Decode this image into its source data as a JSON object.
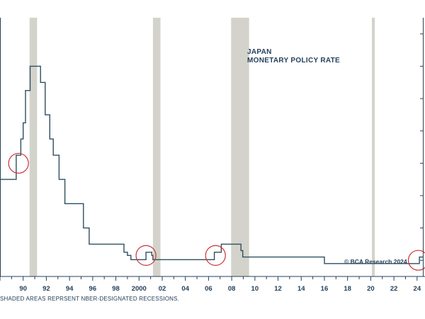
{
  "chart_data": {
    "type": "line",
    "title_lines": [
      "JAPAN",
      "MONETARY POLICY RATE"
    ],
    "credit": "© BCA Research 2024",
    "footnote": "SHADED AREAS REPRSENT NBER-DESIGNATED RECESSIONS.",
    "x_tick_labels": [
      "90",
      "92",
      "94",
      "96",
      "98",
      "2000",
      "02",
      "04",
      "06",
      "08",
      "10",
      "12",
      "14",
      "16",
      "18",
      "20",
      "22",
      "24"
    ],
    "x_tick_values": [
      1990,
      1992,
      1994,
      1996,
      1998,
      2000,
      2002,
      2004,
      2006,
      2008,
      2010,
      2012,
      2014,
      2016,
      2018,
      2020,
      2022,
      2024
    ],
    "xlim": [
      1988.0,
      2024.5
    ],
    "ylim": [
      -0.5,
      7.5
    ],
    "y_grid": false,
    "series": [
      {
        "name": "",
        "color": "#2f4f5f",
        "step": true,
        "points": [
          [
            1988.0,
            2.5
          ],
          [
            1989.4,
            2.5
          ],
          [
            1989.4,
            3.25
          ],
          [
            1989.8,
            3.25
          ],
          [
            1989.8,
            3.75
          ],
          [
            1990.0,
            3.75
          ],
          [
            1990.0,
            4.25
          ],
          [
            1990.2,
            4.25
          ],
          [
            1990.2,
            5.25
          ],
          [
            1990.6,
            5.25
          ],
          [
            1990.6,
            6.0
          ],
          [
            1991.5,
            6.0
          ],
          [
            1991.5,
            5.5
          ],
          [
            1991.9,
            5.5
          ],
          [
            1991.9,
            4.5
          ],
          [
            1992.3,
            4.5
          ],
          [
            1992.3,
            3.75
          ],
          [
            1992.6,
            3.75
          ],
          [
            1992.6,
            3.25
          ],
          [
            1993.1,
            3.25
          ],
          [
            1993.1,
            2.5
          ],
          [
            1993.6,
            2.5
          ],
          [
            1993.6,
            1.75
          ],
          [
            1995.2,
            1.75
          ],
          [
            1995.2,
            1.0
          ],
          [
            1995.7,
            1.0
          ],
          [
            1995.7,
            0.5
          ],
          [
            1998.7,
            0.5
          ],
          [
            1998.7,
            0.25
          ],
          [
            1999.0,
            0.25
          ],
          [
            1999.0,
            0.15
          ],
          [
            1999.3,
            0.15
          ],
          [
            1999.3,
            0.02
          ],
          [
            2000.6,
            0.02
          ],
          [
            2000.6,
            0.25
          ],
          [
            2001.1,
            0.25
          ],
          [
            2001.1,
            0.15
          ],
          [
            2001.2,
            0.15
          ],
          [
            2001.2,
            0.02
          ],
          [
            2006.5,
            0.02
          ],
          [
            2006.5,
            0.25
          ],
          [
            2007.1,
            0.25
          ],
          [
            2007.1,
            0.5
          ],
          [
            2008.8,
            0.5
          ],
          [
            2008.8,
            0.3
          ],
          [
            2008.95,
            0.3
          ],
          [
            2008.95,
            0.1
          ],
          [
            2016.0,
            0.1
          ],
          [
            2016.0,
            -0.1
          ],
          [
            2024.2,
            -0.1
          ],
          [
            2024.2,
            0.1
          ],
          [
            2024.5,
            0.1
          ]
        ]
      }
    ],
    "recession_shading": [
      [
        1990.55,
        1991.2
      ],
      [
        2001.2,
        2001.85
      ],
      [
        2007.95,
        2009.5
      ],
      [
        2020.1,
        2020.35
      ]
    ],
    "highlight_circles": [
      {
        "x": 1989.6,
        "y": 3.0
      },
      {
        "x": 2000.6,
        "y": 0.15
      },
      {
        "x": 2006.6,
        "y": 0.15
      },
      {
        "x": 2024.1,
        "y": 0.0
      }
    ]
  }
}
